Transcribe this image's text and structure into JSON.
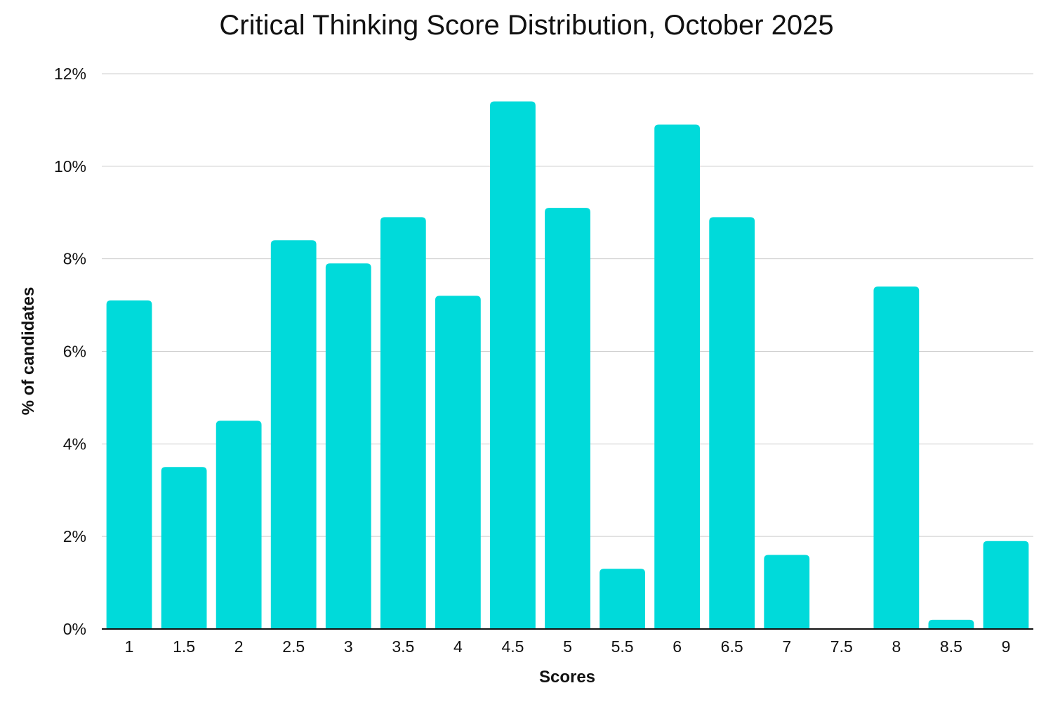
{
  "chart_data": {
    "type": "bar",
    "title": "Critical Thinking Score Distribution, October 2025",
    "xlabel": "Scores",
    "ylabel": "% of candidates",
    "categories": [
      "1",
      "1.5",
      "2",
      "2.5",
      "3",
      "3.5",
      "4",
      "4.5",
      "5",
      "5.5",
      "6",
      "6.5",
      "7",
      "7.5",
      "8",
      "8.5",
      "9"
    ],
    "values": [
      7.1,
      3.5,
      4.5,
      8.4,
      7.9,
      8.9,
      7.2,
      11.4,
      9.1,
      1.3,
      10.9,
      8.9,
      1.6,
      0,
      7.4,
      0.2,
      1.9
    ],
    "ylim": [
      0,
      12
    ],
    "yticks": [
      0,
      2,
      4,
      6,
      8,
      10,
      12
    ],
    "ytick_labels": [
      "0%",
      "2%",
      "4%",
      "6%",
      "8%",
      "10%",
      "12%"
    ],
    "grid": true,
    "bar_color": "#00DADA",
    "grid_color": "#CCCCCC",
    "axis_color": "#111111"
  }
}
